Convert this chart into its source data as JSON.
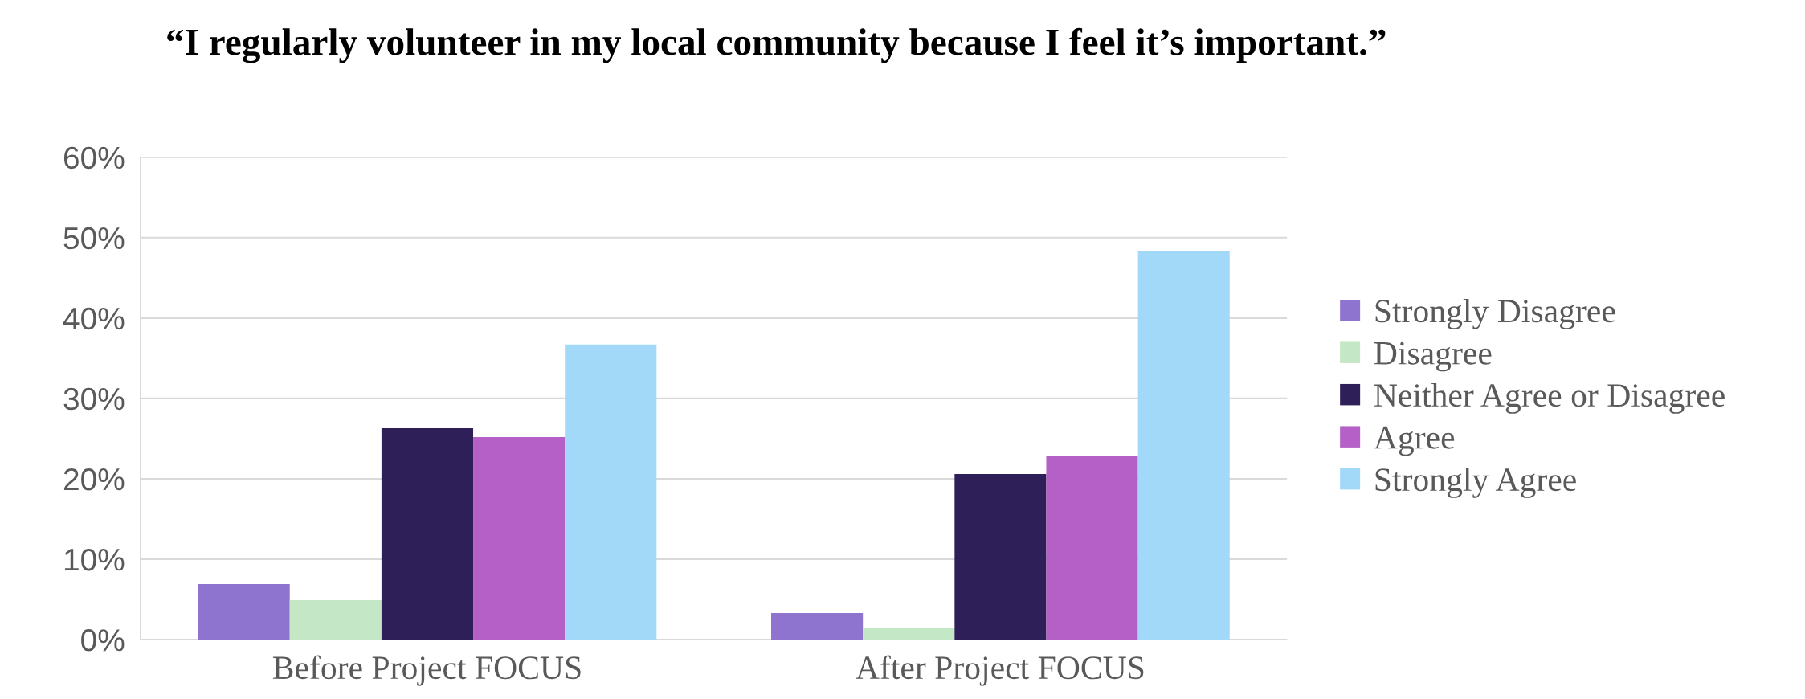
{
  "chart_data": {
    "type": "bar",
    "title": "“I regularly volunteer in my local community because I feel it’s important.”",
    "categories": [
      "Before Project FOCUS",
      "After Project FOCUS"
    ],
    "series": [
      {
        "name": "Strongly Disagree",
        "color": "#8e74cf",
        "values": [
          6.9,
          3.3
        ]
      },
      {
        "name": "Disagree",
        "color": "#c4e7c6",
        "values": [
          4.9,
          1.4
        ]
      },
      {
        "name": "Neither Agree or Disagree",
        "color": "#2f1f58",
        "values": [
          26.3,
          20.6
        ]
      },
      {
        "name": "Agree",
        "color": "#b460c6",
        "values": [
          25.2,
          22.9
        ]
      },
      {
        "name": "Strongly Agree",
        "color": "#a2d9f8",
        "values": [
          36.7,
          48.3
        ]
      }
    ],
    "ylim": [
      0,
      60
    ],
    "yticks": [
      {
        "value": 0,
        "label": "0%"
      },
      {
        "value": 10,
        "label": "10%"
      },
      {
        "value": 20,
        "label": "20%"
      },
      {
        "value": 30,
        "label": "30%"
      },
      {
        "value": 40,
        "label": "40%"
      },
      {
        "value": 50,
        "label": "50%"
      },
      {
        "value": 60,
        "label": "60%"
      }
    ],
    "grid": "y",
    "legend": "right"
  }
}
